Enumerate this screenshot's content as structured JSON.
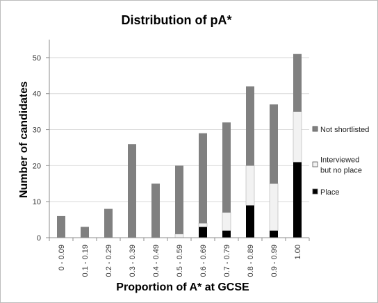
{
  "chart_data": {
    "type": "bar",
    "stacked": true,
    "title": "Distribution  of pA*",
    "xlabel": "Proportion of A* at GCSE",
    "ylabel": "Number of candidates",
    "ylim": [
      0,
      55
    ],
    "yticks": [
      0,
      10,
      20,
      30,
      40,
      50
    ],
    "grid": true,
    "legend": "right",
    "categories": [
      "0 - 0.09",
      "0.1 - 0.19",
      "0.2 - 0.29",
      "0.3 - 0.39",
      "0.4 - 0.49",
      "0.5 - 0.59",
      "0.6 - 0.69",
      "0.7 - 0.79",
      "0.8 - 0.89",
      "0.9 - 0.99",
      "1.00"
    ],
    "series": [
      {
        "name": "Place",
        "color": "#000000",
        "values": [
          0,
          0,
          0,
          0,
          0,
          0,
          3,
          2,
          9,
          2,
          21
        ]
      },
      {
        "name": "Interviewed but no place",
        "legend_lines": [
          "Interviewed",
          "but no place"
        ],
        "color": "#f2f2f2",
        "values": [
          0,
          0,
          0,
          0,
          0,
          1,
          1,
          5,
          11,
          13,
          14
        ]
      },
      {
        "name": "Not shortlisted",
        "color": "#808080",
        "values": [
          6,
          3,
          8,
          26,
          15,
          19,
          25,
          25,
          22,
          22,
          16
        ]
      }
    ]
  }
}
